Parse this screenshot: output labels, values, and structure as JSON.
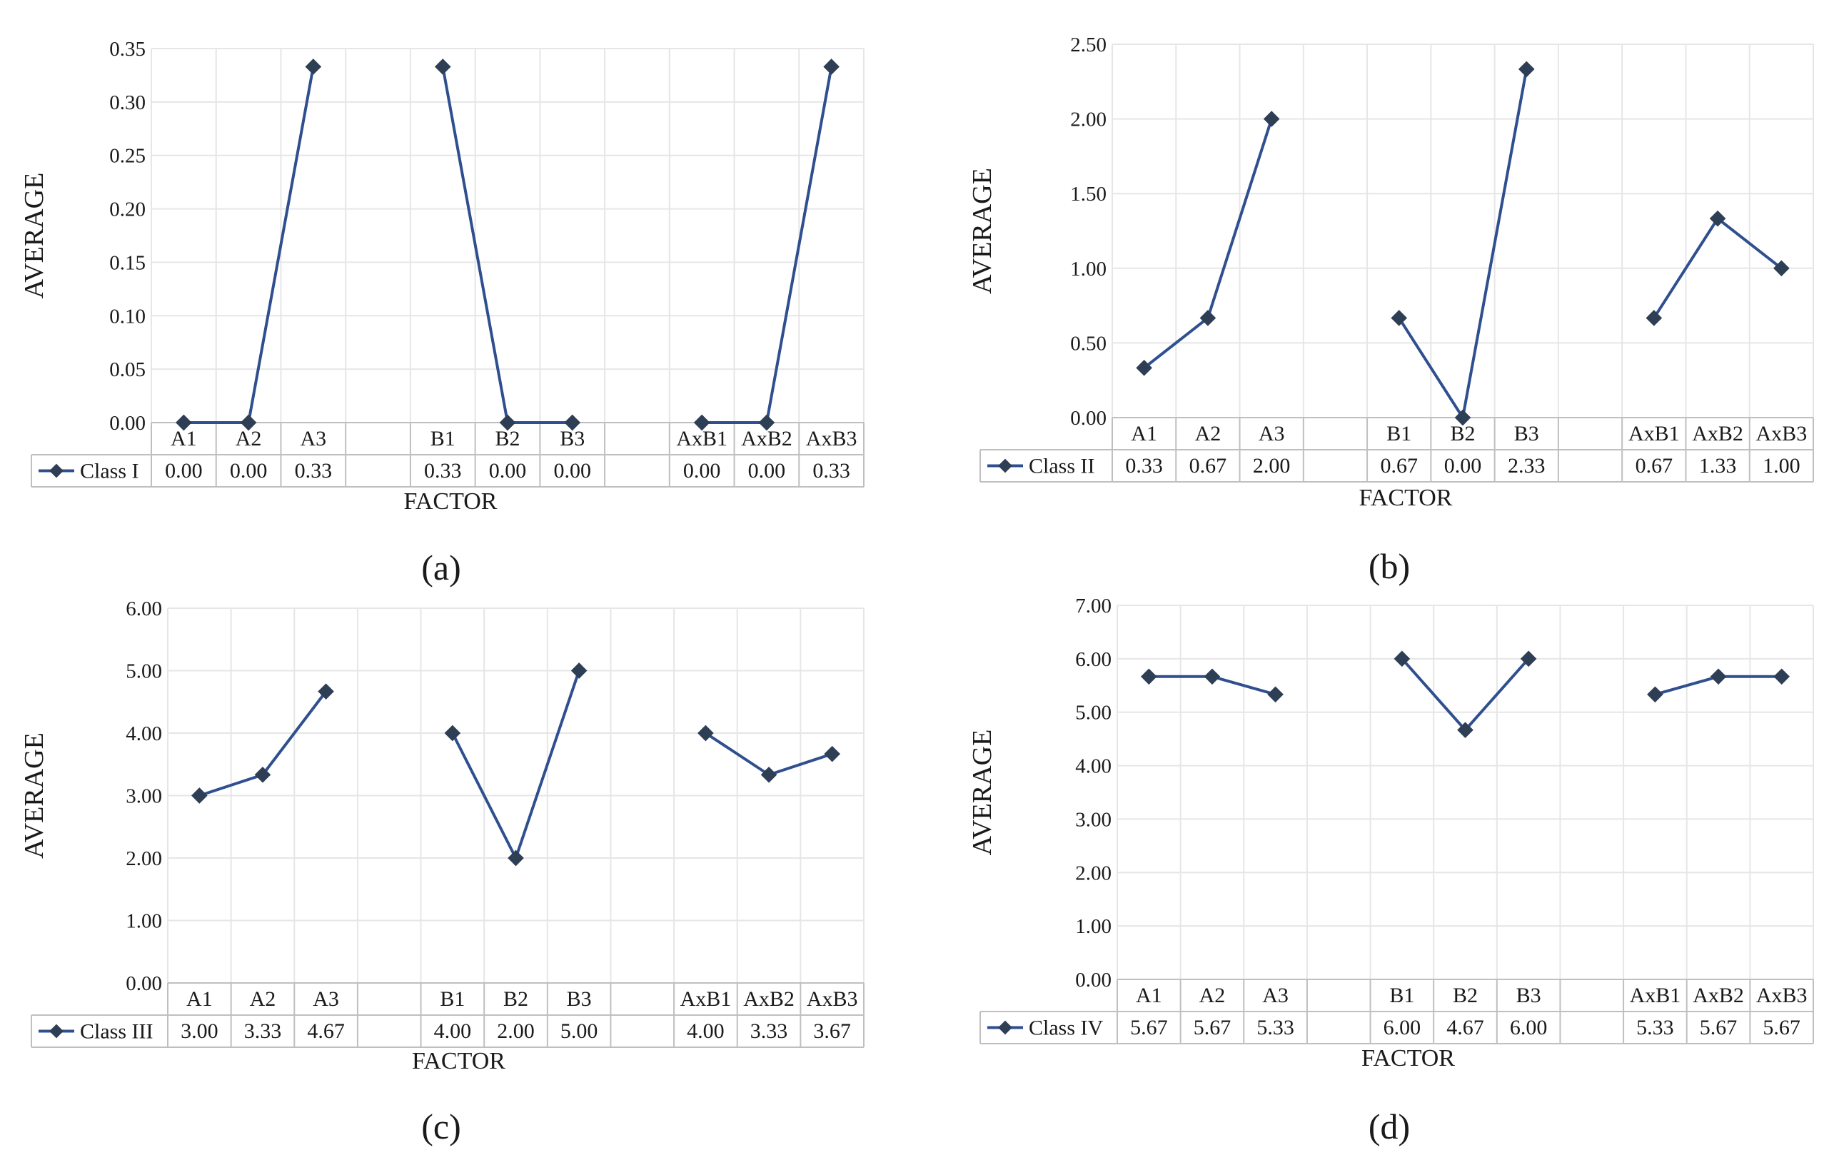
{
  "figure": {
    "colors": {
      "line": "#2F4F8F",
      "marker": "#2E3E55",
      "grid": "#E6E6E6",
      "table_border": "#BFBFBF",
      "text": "#1a1a1a"
    }
  },
  "chart_data": [
    {
      "type": "line",
      "panel_label": "(a)",
      "ylabel": "AVERAGE",
      "xlabel": "FACTOR",
      "ylim": [
        0,
        0.35
      ],
      "yticks": [
        "0.00",
        "0.05",
        "0.10",
        "0.15",
        "0.20",
        "0.25",
        "0.30",
        "0.35"
      ],
      "categories": [
        "A1",
        "A2",
        "A3",
        "",
        "B1",
        "B2",
        "B3",
        "",
        "AxB1",
        "AxB2",
        "AxB3"
      ],
      "series": [
        {
          "name": "Class I",
          "values": [
            0.0,
            0.0,
            0.333,
            null,
            0.333,
            0.0,
            0.0,
            null,
            0.0,
            0.0,
            0.333
          ]
        }
      ],
      "table_values": [
        "0.00",
        "0.00",
        "0.33",
        "",
        "0.33",
        "0.00",
        "0.00",
        "",
        "0.00",
        "0.00",
        "0.33"
      ]
    },
    {
      "type": "line",
      "panel_label": "(b)",
      "ylabel": "AVERAGE",
      "xlabel": "FACTOR",
      "ylim": [
        0,
        2.5
      ],
      "yticks": [
        "0.00",
        "0.50",
        "1.00",
        "1.50",
        "2.00",
        "2.50"
      ],
      "categories": [
        "A1",
        "A2",
        "A3",
        "",
        "B1",
        "B2",
        "B3",
        "",
        "AxB1",
        "AxB2",
        "AxB3"
      ],
      "series": [
        {
          "name": "Class II",
          "values": [
            0.333,
            0.667,
            2.0,
            null,
            0.667,
            0.0,
            2.333,
            null,
            0.667,
            1.333,
            1.0
          ]
        }
      ],
      "table_values": [
        "0.33",
        "0.67",
        "2.00",
        "",
        "0.67",
        "0.00",
        "2.33",
        "",
        "0.67",
        "1.33",
        "1.00"
      ]
    },
    {
      "type": "line",
      "panel_label": "(c)",
      "ylabel": "AVERAGE",
      "xlabel": "FACTOR",
      "ylim": [
        0,
        6
      ],
      "yticks": [
        "0.00",
        "1.00",
        "2.00",
        "3.00",
        "4.00",
        "5.00",
        "6.00"
      ],
      "categories": [
        "A1",
        "A2",
        "A3",
        "",
        "B1",
        "B2",
        "B3",
        "",
        "AxB1",
        "AxB2",
        "AxB3"
      ],
      "series": [
        {
          "name": "Class III",
          "values": [
            3.0,
            3.333,
            4.667,
            null,
            4.0,
            2.0,
            5.0,
            null,
            4.0,
            3.333,
            3.667
          ]
        }
      ],
      "table_values": [
        "3.00",
        "3.33",
        "4.67",
        "",
        "4.00",
        "2.00",
        "5.00",
        "",
        "4.00",
        "3.33",
        "3.67"
      ]
    },
    {
      "type": "line",
      "panel_label": "(d)",
      "ylabel": "AVERAGE",
      "xlabel": "FACTOR",
      "ylim": [
        0,
        7
      ],
      "yticks": [
        "0.00",
        "1.00",
        "2.00",
        "3.00",
        "4.00",
        "5.00",
        "6.00",
        "7.00"
      ],
      "categories": [
        "A1",
        "A2",
        "A3",
        "",
        "B1",
        "B2",
        "B3",
        "",
        "AxB1",
        "AxB2",
        "AxB3"
      ],
      "series": [
        {
          "name": "Class IV",
          "values": [
            5.667,
            5.667,
            5.333,
            null,
            6.0,
            4.667,
            6.0,
            null,
            5.333,
            5.667,
            5.667
          ]
        }
      ],
      "table_values": [
        "5.67",
        "5.67",
        "5.33",
        "",
        "6.00",
        "4.67",
        "6.00",
        "",
        "5.33",
        "5.67",
        "5.67"
      ]
    }
  ]
}
